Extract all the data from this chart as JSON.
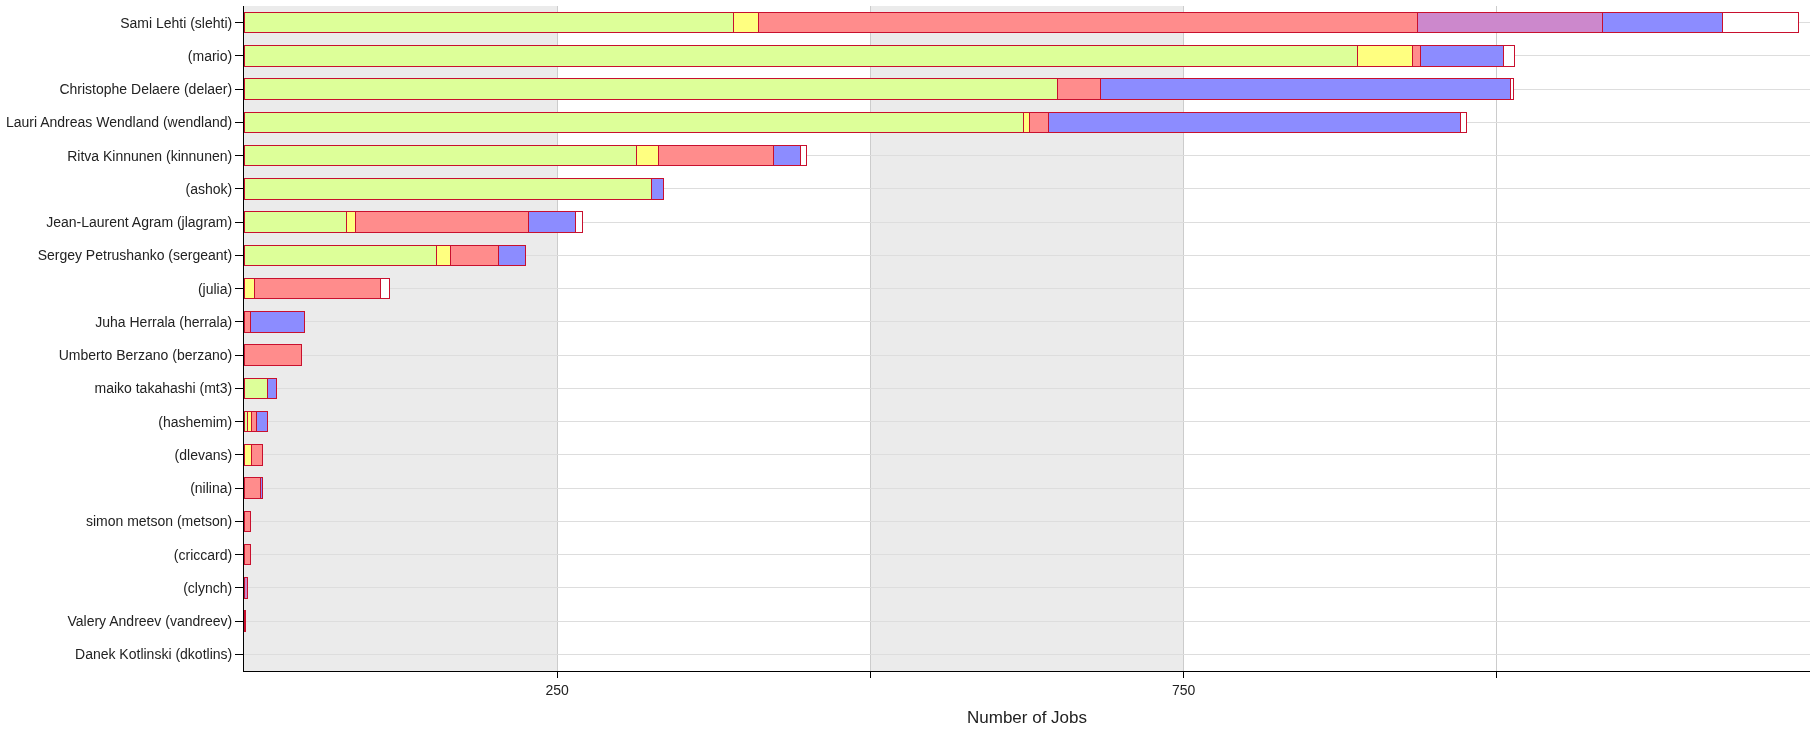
{
  "chart_data": {
    "type": "bar",
    "orientation": "horizontal",
    "stacked": true,
    "xlabel": "Number of Jobs",
    "categories": [
      "Sami Lehti (slehti)",
      "(mario)",
      "Christophe Delaere (delaer)",
      "Lauri Andreas Wendland (wendland)",
      "Ritva Kinnunen (kinnunen)",
      "(ashok)",
      "Jean-Laurent Agram (jlagram)",
      "Sergey Petrushanko (sergeant)",
      "(julia)",
      "Juha Herrala (herrala)",
      "Umberto Berzano (berzano)",
      "maiko takahashi (mt3)",
      "(hashemim)",
      "(dlevans)",
      "(nilina)",
      "simon metson (metson)",
      "(criccard)",
      "(clynch)",
      "Valery Andreev (vandreev)",
      "Danek Kotlinski (dkotlins)"
    ],
    "series": [
      {
        "color": "#ddff99",
        "values": [
          391,
          889,
          649,
          622,
          313,
          325,
          82,
          154,
          null,
          null,
          null,
          19,
          3,
          null,
          null,
          null,
          null,
          null,
          null,
          null
        ]
      },
      {
        "color": "#ffff80",
        "values": [
          20,
          44,
          null,
          5,
          18,
          null,
          7,
          11,
          8,
          null,
          null,
          null,
          3,
          6,
          null,
          null,
          null,
          null,
          null,
          null
        ]
      },
      {
        "color": "#ff8c8c",
        "values": [
          526,
          6,
          35,
          15,
          92,
          null,
          138,
          38,
          101,
          5,
          46,
          null,
          4,
          9,
          13,
          5,
          5,
          null,
          1,
          null
        ]
      },
      {
        "color": "#cc88cc",
        "values": [
          147,
          null,
          null,
          null,
          null,
          null,
          null,
          null,
          null,
          null,
          null,
          null,
          null,
          null,
          null,
          null,
          null,
          3,
          null,
          null
        ]
      },
      {
        "color": "#8c8cff",
        "values": [
          96,
          66,
          327,
          329,
          21,
          10,
          38,
          22,
          null,
          43,
          null,
          7,
          9,
          null,
          2,
          null,
          null,
          null,
          null,
          null
        ]
      },
      {
        "color": "#ffffff",
        "values": [
          61,
          9,
          2,
          5,
          5,
          null,
          5,
          null,
          7,
          null,
          null,
          null,
          null,
          null,
          null,
          null,
          null,
          null,
          null,
          null
        ]
      }
    ],
    "xlim": [
      0,
      1250
    ],
    "xticks": [
      {
        "value": 250,
        "label": "250"
      },
      {
        "value": 500,
        "label": null
      },
      {
        "value": 750,
        "label": "750"
      },
      {
        "value": 1000,
        "label": null
      }
    ],
    "bands": [
      {
        "axis": "x",
        "from": 0,
        "to": 250,
        "color": "#ebebeb"
      },
      {
        "axis": "x",
        "from": 500,
        "to": 750,
        "color": "#ebebeb"
      }
    ],
    "grid": true
  }
}
